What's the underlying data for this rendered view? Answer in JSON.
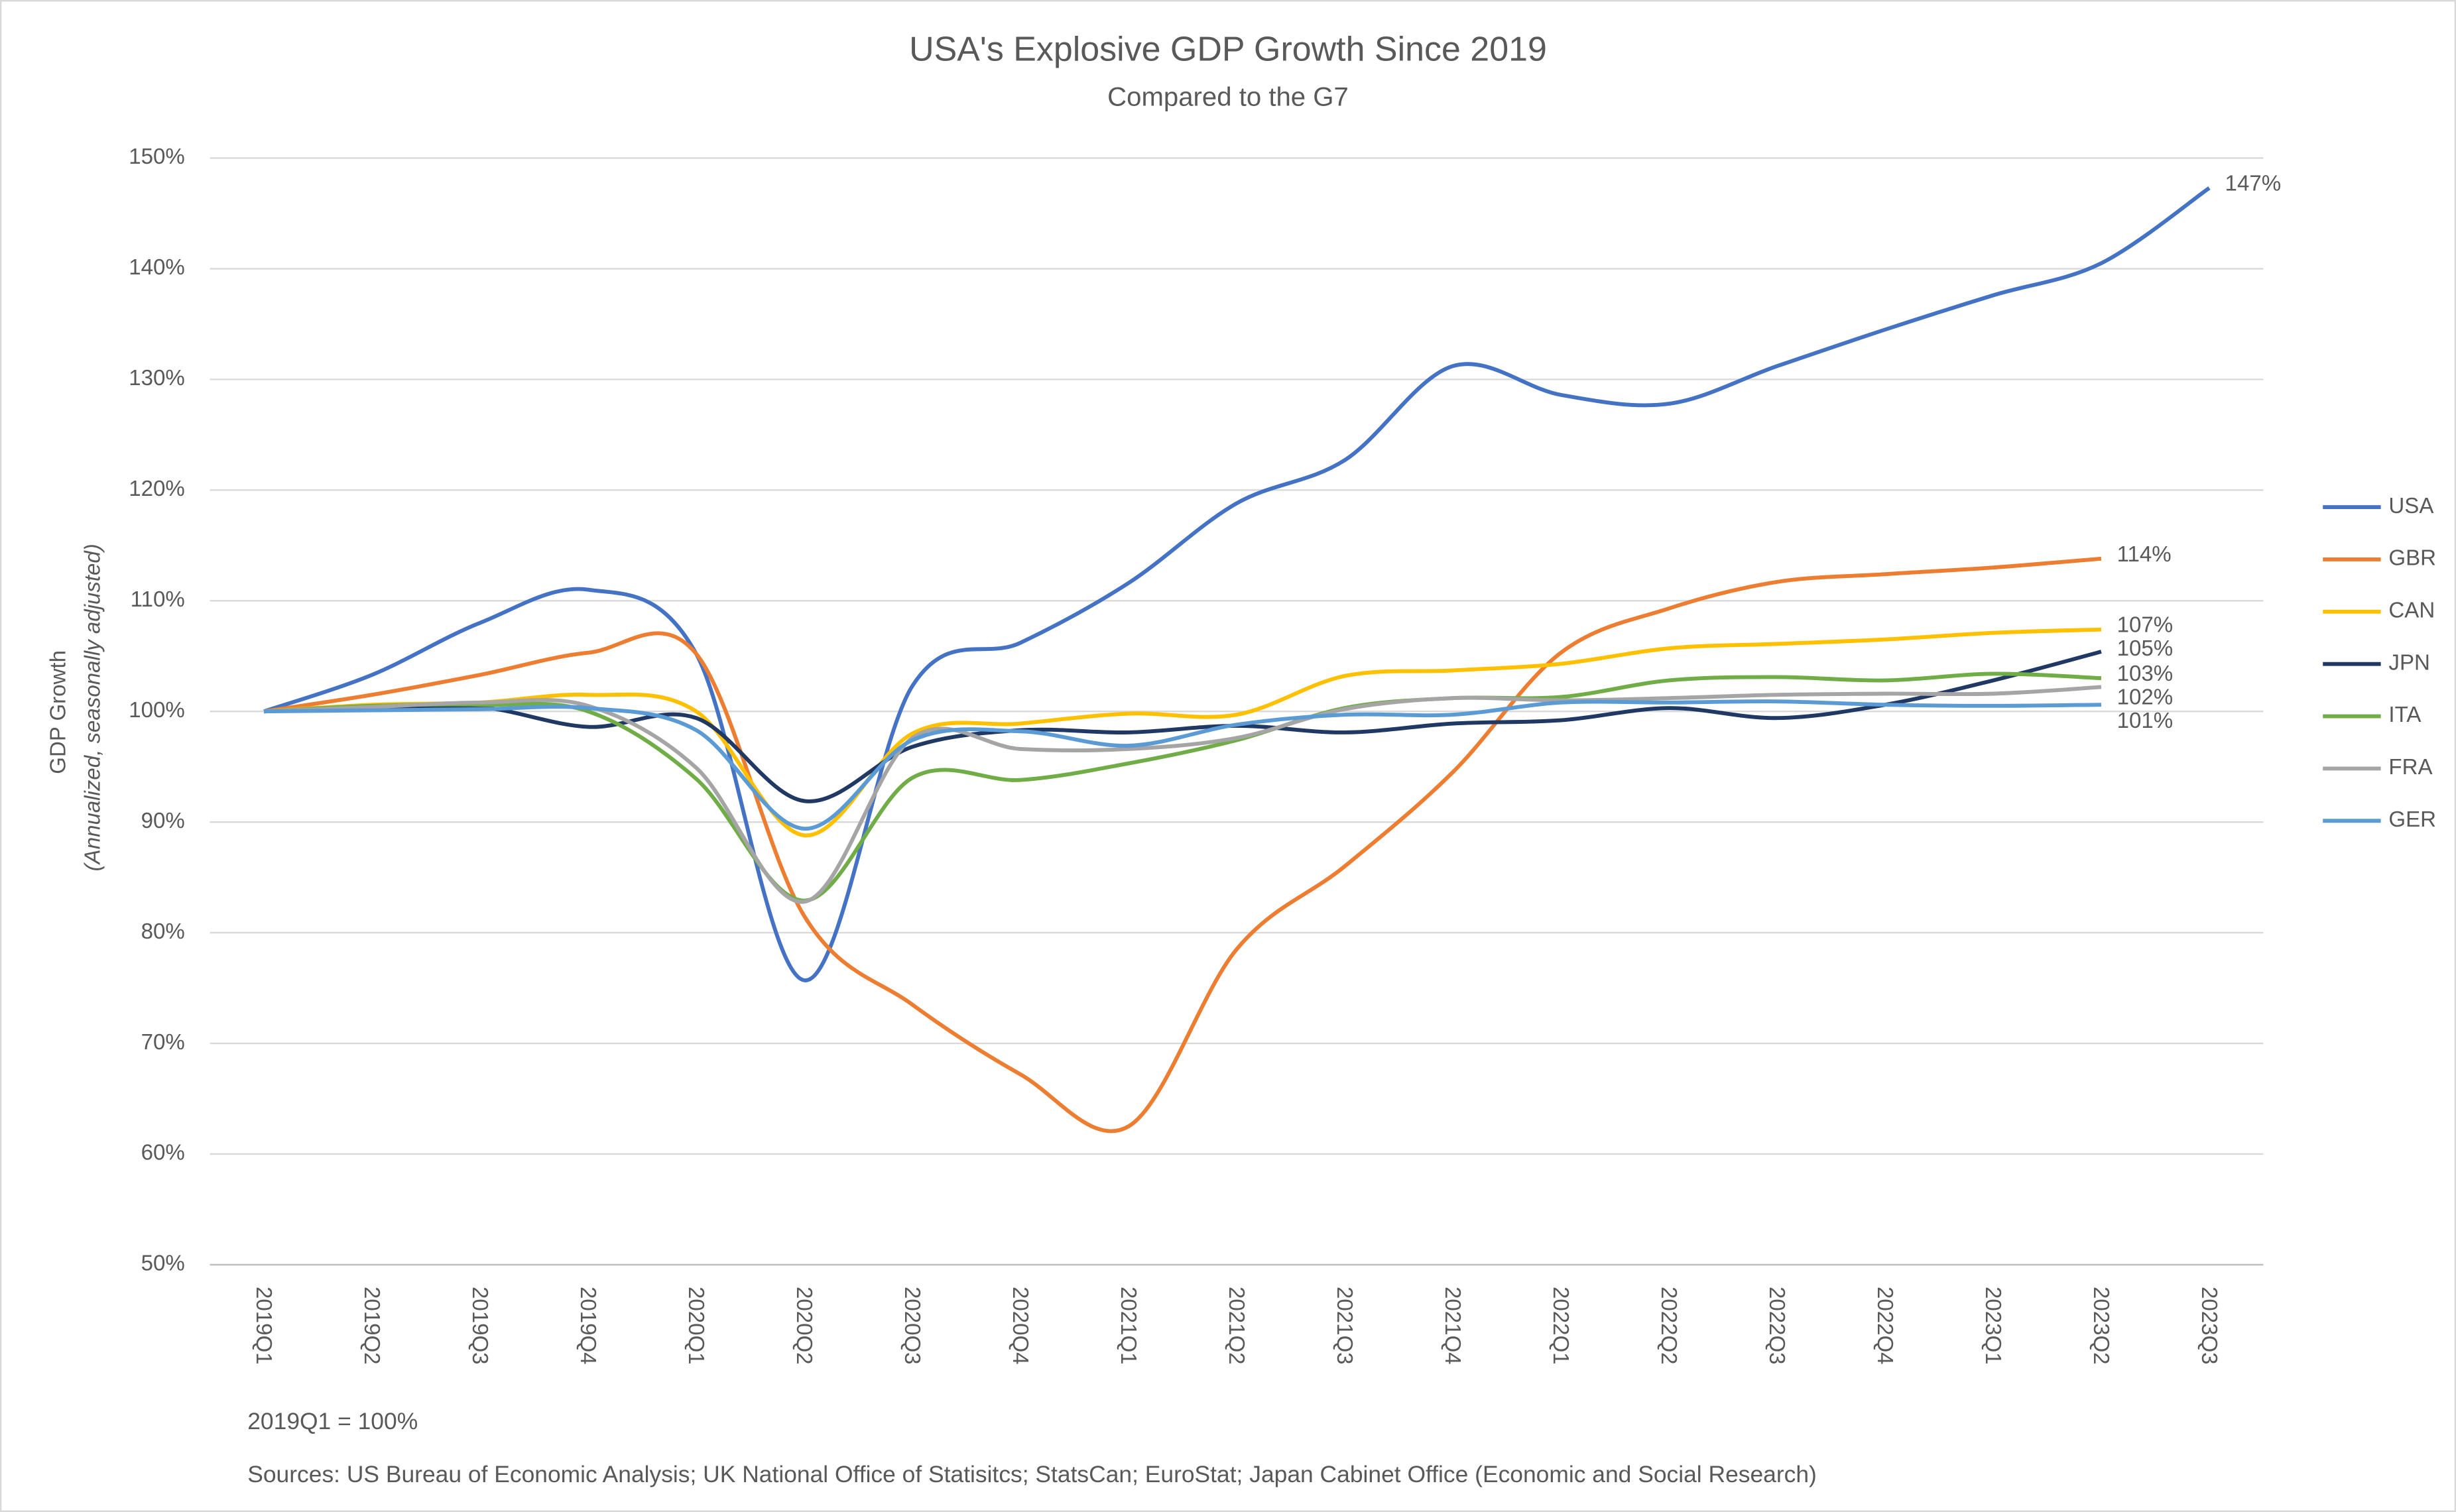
{
  "chart_data": {
    "type": "line",
    "title": "USA's Explosive GDP Growth Since 2019",
    "subtitle": "Compared to the G7",
    "y_label": "GDP Growth",
    "y_label_sub": "(Annualized, seasonally adjusted)",
    "notes": [
      "2019Q1 = 100%",
      "Sources: US Bureau of Economic Analysis; UK National Office of Statisitcs; StatsCan; EuroStat; Japan Cabinet Office (Economic and Social Research)"
    ],
    "categories": [
      "2019Q1",
      "2019Q2",
      "2019Q3",
      "2019Q4",
      "2020Q1",
      "2020Q2",
      "2020Q3",
      "2020Q4",
      "2021Q1",
      "2021Q2",
      "2021Q3",
      "2021Q4",
      "2022Q1",
      "2022Q2",
      "2022Q3",
      "2022Q4",
      "2023Q1",
      "2023Q2",
      "2023Q3"
    ],
    "ylim": [
      50,
      150
    ],
    "yticks": [
      {
        "value": 50,
        "label": "50%"
      },
      {
        "value": 60,
        "label": "60%"
      },
      {
        "value": 70,
        "label": "70%"
      },
      {
        "value": 80,
        "label": "80%"
      },
      {
        "value": 90,
        "label": "90%"
      },
      {
        "value": 100,
        "label": "100%"
      },
      {
        "value": 110,
        "label": "110%"
      },
      {
        "value": 120,
        "label": "120%"
      },
      {
        "value": 130,
        "label": "130%"
      },
      {
        "value": 140,
        "label": "140%"
      },
      {
        "value": 150,
        "label": "150%"
      }
    ],
    "grid": true,
    "legend": "right",
    "series": [
      {
        "name": "USA",
        "color": "#4472c4",
        "values": [
          100,
          103.3,
          108,
          111,
          105.2,
          75.7,
          102.3,
          106.2,
          111.6,
          118.8,
          122.7,
          131.2,
          128.6,
          127.8,
          131.2,
          134.5,
          137.6,
          140.5,
          147.3
        ],
        "value_labels": [
          null,
          null,
          null,
          null,
          null,
          null,
          null,
          null,
          null,
          null,
          null,
          null,
          null,
          null,
          null,
          null,
          null,
          null,
          "147%"
        ]
      },
      {
        "name": "GBR",
        "color": "#ed7d31",
        "values": [
          100,
          101.5,
          103.3,
          105.3,
          105.2,
          81.5,
          73.5,
          67.2,
          62.5,
          78.5,
          86,
          94.5,
          105.3,
          109.3,
          111.7,
          112.4,
          113,
          113.8,
          null
        ],
        "value_labels": [
          null,
          null,
          null,
          null,
          null,
          null,
          null,
          null,
          null,
          null,
          null,
          null,
          null,
          null,
          null,
          null,
          null,
          "114%",
          null
        ]
      },
      {
        "name": "CAN",
        "color": "#ffc000",
        "values": [
          100,
          100.6,
          100.8,
          101.5,
          100,
          88.8,
          98,
          98.9,
          99.8,
          99.7,
          103.2,
          103.7,
          104.3,
          105.7,
          106.1,
          106.5,
          107.1,
          107.4,
          null
        ],
        "value_labels": [
          null,
          null,
          null,
          null,
          null,
          null,
          null,
          null,
          null,
          null,
          null,
          null,
          null,
          null,
          null,
          null,
          null,
          "107%",
          null
        ]
      },
      {
        "name": "JPN",
        "color": "#1f3864",
        "values": [
          100,
          100.3,
          100.4,
          98.6,
          99.4,
          91.9,
          96.8,
          98.3,
          98.1,
          98.7,
          98.1,
          98.9,
          99.2,
          100.3,
          99.4,
          100.6,
          102.8,
          105.4,
          null
        ],
        "value_labels": [
          null,
          null,
          null,
          null,
          null,
          null,
          null,
          null,
          null,
          null,
          null,
          null,
          null,
          null,
          null,
          null,
          null,
          "105%",
          null
        ]
      },
      {
        "name": "ITA",
        "color": "#70ad47",
        "values": [
          100,
          100.5,
          100.6,
          100,
          93.9,
          82.9,
          94,
          93.8,
          95.3,
          97.4,
          100.3,
          101.2,
          101.3,
          102.8,
          103.1,
          102.8,
          103.4,
          103,
          null
        ],
        "value_labels": [
          null,
          null,
          null,
          null,
          null,
          null,
          null,
          null,
          null,
          null,
          null,
          null,
          null,
          null,
          null,
          null,
          null,
          "103%",
          null
        ]
      },
      {
        "name": "FRA",
        "color": "#a5a5a5",
        "values": [
          100,
          100.4,
          100.8,
          100.5,
          94.9,
          82.8,
          97.6,
          96.6,
          96.6,
          97.6,
          100.2,
          101.2,
          101,
          101.2,
          101.5,
          101.6,
          101.6,
          102.2,
          null
        ],
        "value_labels": [
          null,
          null,
          null,
          null,
          null,
          null,
          null,
          null,
          null,
          null,
          null,
          null,
          null,
          null,
          null,
          null,
          null,
          "102%",
          null
        ]
      },
      {
        "name": "GER",
        "color": "#5b9bd5",
        "values": [
          100,
          100.1,
          100.2,
          100.3,
          98.3,
          89.4,
          97.4,
          98.2,
          96.9,
          98.8,
          99.7,
          99.7,
          100.8,
          100.8,
          100.9,
          100.6,
          100.5,
          100.6,
          null
        ],
        "value_labels": [
          null,
          null,
          null,
          null,
          null,
          null,
          null,
          null,
          null,
          null,
          null,
          null,
          null,
          null,
          null,
          null,
          null,
          "101%",
          null
        ]
      }
    ]
  }
}
